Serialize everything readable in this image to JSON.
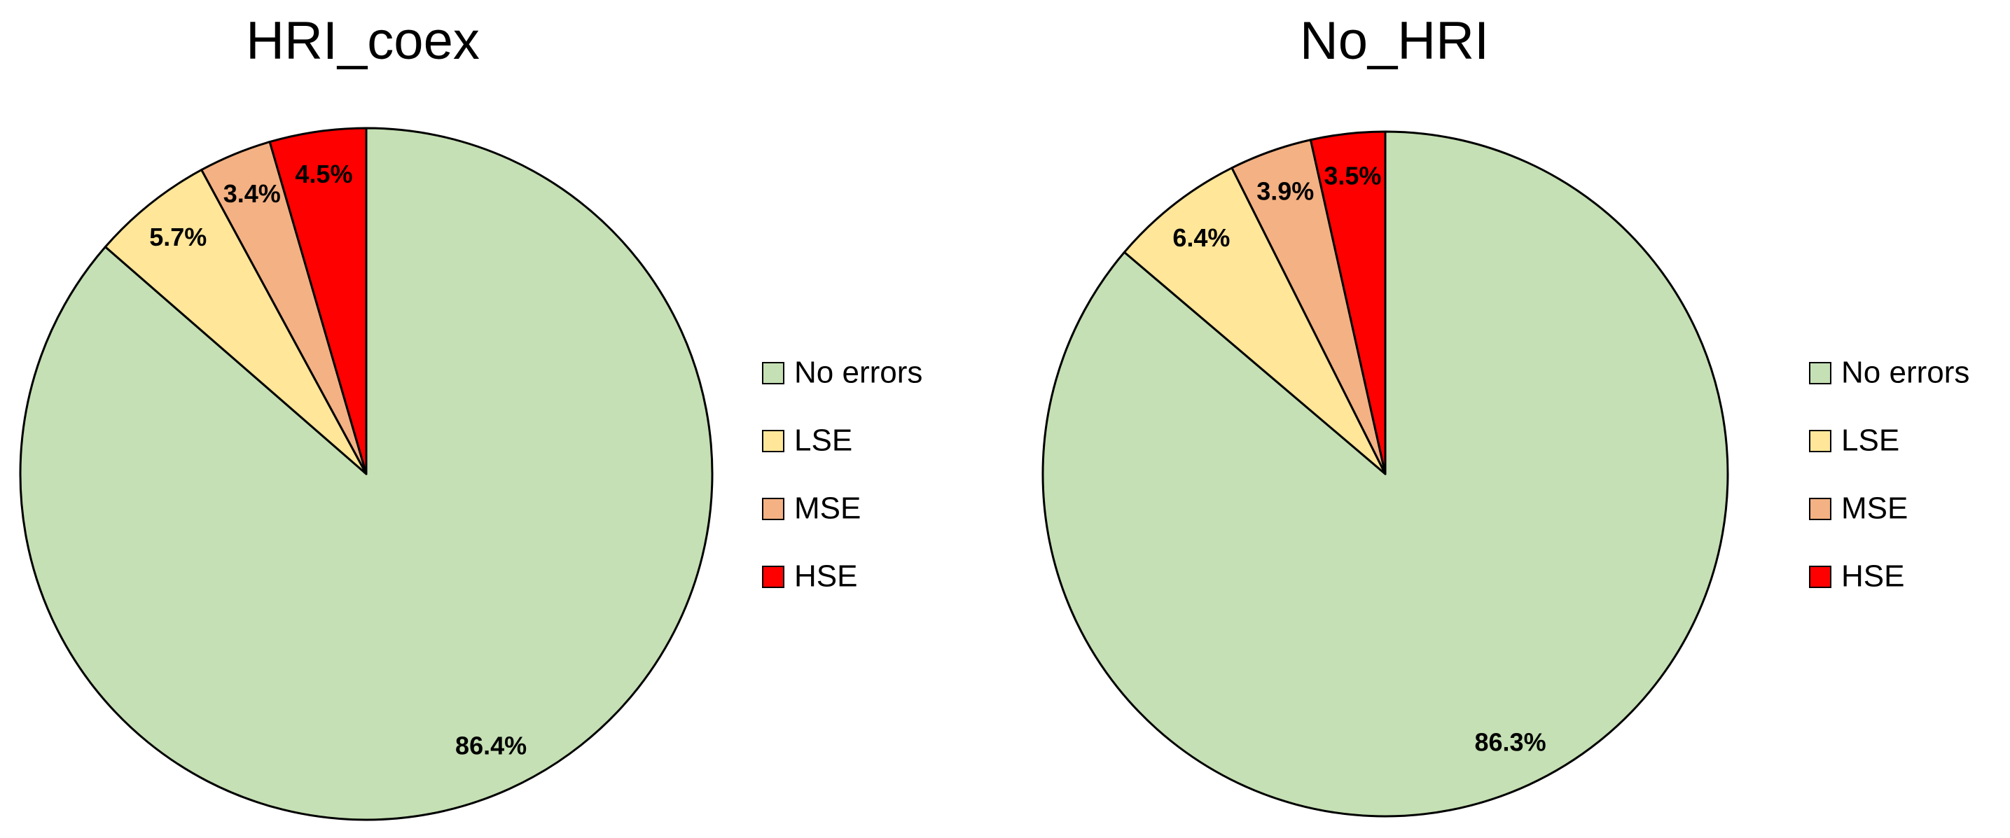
{
  "chart_data": [
    {
      "type": "pie",
      "title": "HRI_coex",
      "categories": [
        "No errors",
        "LSE",
        "MSE",
        "HSE"
      ],
      "values": [
        86.4,
        5.7,
        3.4,
        4.5
      ],
      "value_labels": [
        "86.4%",
        "5.7%",
        "3.4%",
        "4.5%"
      ],
      "colors": [
        "#c5e0b4",
        "#ffe699",
        "#f4b183",
        "#ff0000"
      ],
      "legend": "right"
    },
    {
      "type": "pie",
      "title": "No_HRI",
      "categories": [
        "No errors",
        "LSE",
        "MSE",
        "HSE"
      ],
      "values": [
        86.3,
        6.4,
        3.9,
        3.5
      ],
      "value_labels": [
        "86.3%",
        "6.4%",
        "3.9%",
        "3.5%"
      ],
      "colors": [
        "#c5e0b4",
        "#ffe699",
        "#f4b183",
        "#ff0000"
      ],
      "legend": "right"
    }
  ]
}
